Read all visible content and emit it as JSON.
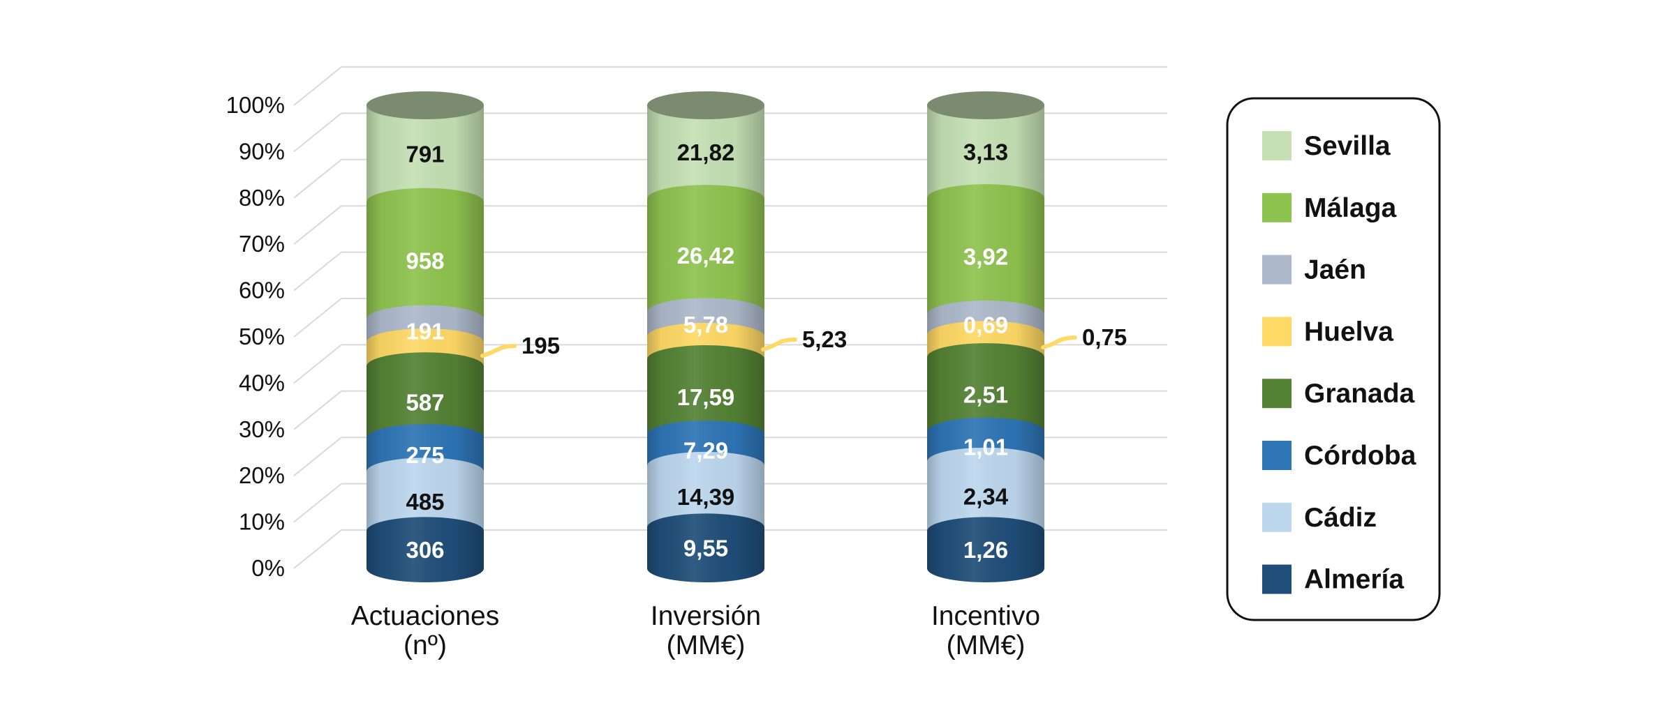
{
  "chart_data": {
    "type": "bar",
    "stacked": "100%",
    "style": "3d-cylinder",
    "categories": [
      "Actuaciones (nº)",
      "Inversión (MM€)",
      "Incentivo (MM€)"
    ],
    "category_lines": [
      [
        "Actuaciones",
        "(nº)"
      ],
      [
        "Inversión",
        "(MM€)"
      ],
      [
        "Incentivo",
        "(MM€)"
      ]
    ],
    "series": [
      {
        "name": "Almería",
        "color": "#1f4e79",
        "labels": [
          "306",
          "9,55",
          "1,26"
        ],
        "values": [
          306,
          9.55,
          1.26
        ]
      },
      {
        "name": "Cádiz",
        "color": "#bdd7ee",
        "labels": [
          "485",
          "14,39",
          "2,34"
        ],
        "values": [
          485,
          14.39,
          2.34
        ]
      },
      {
        "name": "Córdoba",
        "color": "#2e75b6",
        "labels": [
          "275",
          "7,29",
          "1,01"
        ],
        "values": [
          275,
          7.29,
          1.01
        ]
      },
      {
        "name": "Granada",
        "color": "#548235",
        "labels": [
          "587",
          "17,59",
          "2,51"
        ],
        "values": [
          587,
          17.59,
          2.51
        ]
      },
      {
        "name": "Huelva",
        "color": "#ffd966",
        "labels": [
          "195",
          "5,23",
          "0,75"
        ],
        "values": [
          195,
          5.23,
          0.75
        ]
      },
      {
        "name": "Jaén",
        "color": "#adb9ca",
        "labels": [
          "191",
          "5,78",
          "0,69"
        ],
        "values": [
          191,
          5.78,
          0.69
        ]
      },
      {
        "name": "Málaga",
        "color": "#8fc34f",
        "labels": [
          "958",
          "26,42",
          "3,92"
        ],
        "values": [
          958,
          26.42,
          3.92
        ]
      },
      {
        "name": "Sevilla",
        "color": "#c5e0b4",
        "labels": [
          "791",
          "21,82",
          "3,13"
        ],
        "values": [
          791,
          21.82,
          3.13
        ]
      }
    ],
    "label_colors": [
      "#ffffff",
      "#111111",
      "#ffffff",
      "#ffffff",
      "#111111",
      "#ffffff",
      "#ffffff",
      "#111111"
    ],
    "yticks": [
      "0%",
      "10%",
      "20%",
      "30%",
      "40%",
      "50%",
      "60%",
      "70%",
      "80%",
      "90%",
      "100%"
    ],
    "ylim": [
      0,
      100
    ],
    "grid": true,
    "legend": {
      "position": "right",
      "order": [
        "Sevilla",
        "Málaga",
        "Jaén",
        "Huelva",
        "Granada",
        "Córdoba",
        "Cádiz",
        "Almería"
      ]
    }
  }
}
